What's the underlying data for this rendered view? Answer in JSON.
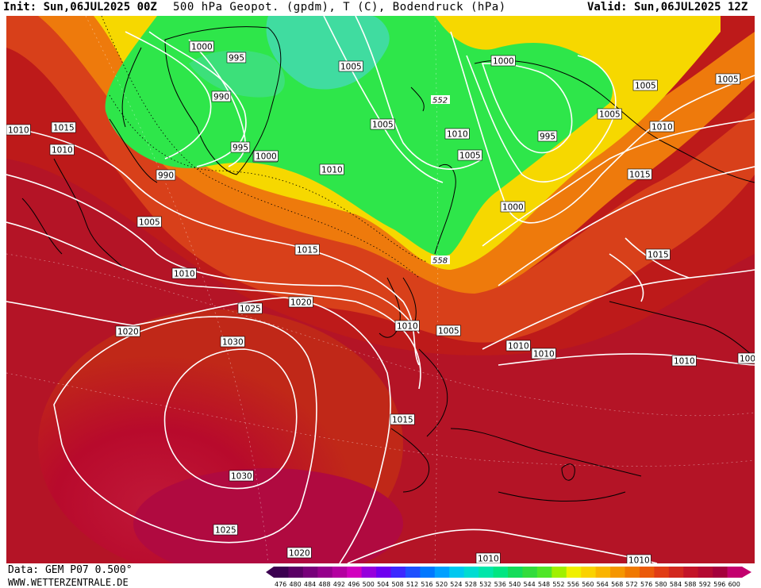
{
  "header": {
    "init": "Init: Sun,06JUL2025 00Z",
    "title": "500 hPa Geopot. (gpdm), T (C), Bodendruck (hPa)",
    "valid": "Valid: Sun,06JUL2025 12Z"
  },
  "footer": {
    "data_source": "Data: GEM P07 0.500°",
    "website": "WWW.WETTERZENTRALE.DE"
  },
  "colors": {
    "bg_deep_red": "#b3001c",
    "bg_red": "#c8261a",
    "bg_orange_red": "#de4a12",
    "bg_orange": "#ee7d0a",
    "bg_yellow": "#f7df00",
    "bg_green": "#2ee64a",
    "bg_teal": "#3fd9b0",
    "bg_magenta_red": "#c0003c",
    "contour": "#ffffff",
    "coast": "#000000"
  },
  "scale": {
    "labels": [
      "476",
      "480",
      "484",
      "488",
      "492",
      "496",
      "500",
      "504",
      "508",
      "512",
      "516",
      "520",
      "524",
      "528",
      "532",
      "536",
      "540",
      "544",
      "548",
      "552",
      "556",
      "560",
      "564",
      "568",
      "572",
      "576",
      "580",
      "584",
      "588",
      "592",
      "596",
      "600"
    ],
    "colors": [
      "#3c0050",
      "#5a0064",
      "#78007a",
      "#96008c",
      "#b400a0",
      "#d200be",
      "#9600dc",
      "#6e00f0",
      "#3c28ff",
      "#1e50ff",
      "#0078ff",
      "#00a0ff",
      "#00c8f0",
      "#00dcd2",
      "#00e6aa",
      "#00e682",
      "#14dc5a",
      "#32dc3c",
      "#50e628",
      "#a0f000",
      "#f0f000",
      "#fad200",
      "#fab400",
      "#f59600",
      "#f07800",
      "#eb5a0a",
      "#e13c14",
      "#d2281e",
      "#c31428",
      "#b40a32",
      "#a5003c",
      "#c3006e"
    ]
  },
  "isobars": [
    {
      "label": "1000",
      "pos": "a"
    },
    {
      "label": "995",
      "pos": "b"
    },
    {
      "label": "990",
      "pos": "c"
    },
    {
      "label": "1005",
      "pos": "d"
    },
    {
      "label": "1000",
      "pos": "e"
    },
    {
      "label": "1000",
      "pos": "f"
    },
    {
      "label": "1005",
      "pos": "g"
    },
    {
      "label": "1010",
      "pos": "h"
    },
    {
      "label": "995",
      "pos": "i"
    },
    {
      "label": "1005",
      "pos": "j"
    },
    {
      "label": "1010",
      "pos": "k"
    },
    {
      "label": "1005",
      "pos": "l"
    },
    {
      "label": "1000",
      "pos": "m"
    },
    {
      "label": "1005",
      "pos": "n"
    },
    {
      "label": "1005",
      "pos": "o"
    },
    {
      "label": "1000",
      "pos": "p"
    },
    {
      "label": "1010",
      "pos": "q"
    },
    {
      "label": "1015",
      "pos": "r"
    },
    {
      "label": "1010",
      "pos": "s"
    },
    {
      "label": "1015",
      "pos": "t"
    },
    {
      "label": "1010",
      "pos": "u"
    },
    {
      "label": "1005",
      "pos": "v"
    },
    {
      "label": "990",
      "pos": "w"
    },
    {
      "label": "995",
      "pos": "x"
    },
    {
      "label": "1000",
      "pos": "y"
    },
    {
      "label": "1010",
      "pos": "z"
    },
    {
      "label": "1015",
      "pos": "aa"
    },
    {
      "label": "1010",
      "pos": "ab"
    },
    {
      "label": "1015",
      "pos": "ac"
    },
    {
      "label": "1020",
      "pos": "ad"
    },
    {
      "label": "1025",
      "pos": "ae"
    },
    {
      "label": "1020",
      "pos": "af"
    },
    {
      "label": "1030",
      "pos": "ag"
    },
    {
      "label": "1010",
      "pos": "ah"
    },
    {
      "label": "1005",
      "pos": "ai"
    },
    {
      "label": "1010",
      "pos": "aj"
    },
    {
      "label": "1010",
      "pos": "ak"
    },
    {
      "label": "1010",
      "pos": "al"
    },
    {
      "label": "1015",
      "pos": "am"
    },
    {
      "label": "1030",
      "pos": "an"
    },
    {
      "label": "1025",
      "pos": "ao"
    },
    {
      "label": "1020",
      "pos": "ap"
    },
    {
      "label": "1010",
      "pos": "aq"
    },
    {
      "label": "1010",
      "pos": "ar"
    },
    {
      "label": "100",
      "pos": "as"
    },
    {
      "label": "1015",
      "pos": "at"
    },
    {
      "label": "1005",
      "pos": "au"
    }
  ],
  "geopot_labels": [
    {
      "label": "552",
      "pos": "g1"
    },
    {
      "label": "558",
      "pos": "g2"
    }
  ]
}
